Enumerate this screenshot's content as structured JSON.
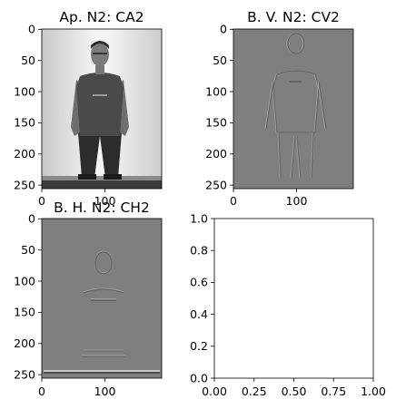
{
  "figure": {
    "background": "#ffffff"
  },
  "chart_data": [
    {
      "type": "image",
      "title": "Ap. N2: CA2",
      "image_size": [
        190,
        256
      ],
      "xlim": [
        0,
        190
      ],
      "ylim": [
        256,
        0
      ],
      "xticks": [
        0,
        100
      ],
      "yticks": [
        0,
        50,
        100,
        150,
        200,
        250
      ],
      "colormap": "gray",
      "content": "grayscale photo of a standing man"
    },
    {
      "type": "image",
      "title": "B. V. N2: CV2",
      "image_size": [
        190,
        256
      ],
      "xlim": [
        0,
        190
      ],
      "ylim": [
        256,
        0
      ],
      "xticks": [
        0,
        100
      ],
      "yticks": [
        0,
        50,
        100,
        150,
        200,
        250
      ],
      "colormap": "gray",
      "content": "vertical wavelet detail coefficients"
    },
    {
      "type": "image",
      "title": "B. H. N2: CH2",
      "image_size": [
        190,
        256
      ],
      "xlim": [
        0,
        190
      ],
      "ylim": [
        256,
        0
      ],
      "xticks": [
        0,
        100
      ],
      "yticks": [
        0,
        50,
        100,
        150,
        200,
        250
      ],
      "colormap": "gray",
      "content": "horizontal wavelet detail coefficients"
    },
    {
      "type": "empty",
      "title": "",
      "xlim": [
        0,
        1
      ],
      "ylim": [
        0,
        1
      ],
      "xticks": [
        0.0,
        0.25,
        0.5,
        0.75,
        1.0
      ],
      "yticks": [
        0.0,
        0.2,
        0.4,
        0.6,
        0.8,
        1.0
      ],
      "xtick_labels": [
        "0.00",
        "0.25",
        "0.50",
        "0.75",
        "1.00"
      ],
      "ytick_labels": [
        "0.0",
        "0.2",
        "0.4",
        "0.6",
        "0.8",
        "1.0"
      ]
    }
  ]
}
